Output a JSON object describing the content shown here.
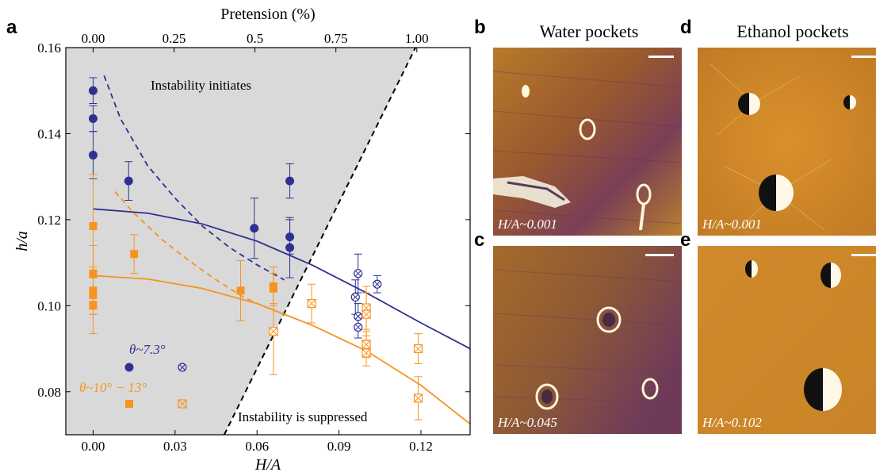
{
  "panels": {
    "a": "a",
    "b": "b",
    "c": "c",
    "d": "d",
    "e": "e"
  },
  "image_titles": {
    "water": "Water pockets",
    "ethanol": "Ethanol pockets"
  },
  "image_labels": {
    "b": "H/A~0.001",
    "c": "H/A~0.045",
    "d": "H/A~0.001",
    "e": "H/A~0.102"
  },
  "annotations": {
    "instability_initiates": "Instability initiates",
    "instability_suppressed": "Instability is suppressed",
    "legend_blue": "θ~7.3°",
    "legend_orange": "θ~10° − 13°"
  },
  "colors": {
    "blue": "#2e3192",
    "orange": "#f7931e",
    "shaded": "#d9d9d9"
  },
  "chart_data": {
    "type": "scatter",
    "xlabel": "H/A",
    "ylabel": "h/a",
    "top_xlabel": "Pretension (%)",
    "xlim": [
      -0.01,
      0.138
    ],
    "ylim": [
      0.07,
      0.16
    ],
    "x_ticks": [
      0.0,
      0.03,
      0.06,
      0.09,
      0.12
    ],
    "x_tick_labels": [
      "0.00",
      "0.03",
      "0.06",
      "0.09",
      "0.12"
    ],
    "y_ticks": [
      0.08,
      0.1,
      0.12,
      0.14,
      0.16
    ],
    "y_tick_labels": [
      "0.08",
      "0.10",
      "0.12",
      "0.14",
      "0.16"
    ],
    "top_ticks": [
      0.0,
      0.25,
      0.5,
      0.75,
      1.0
    ],
    "top_tick_labels": [
      "0.00",
      "0.25",
      "0.5",
      "0.75",
      "1.00"
    ],
    "boundary_line": {
      "x": [
        0.048,
        0.118
      ],
      "y": [
        0.07,
        0.16
      ]
    },
    "series": [
      {
        "name": "θ~7.3°",
        "color": "blue",
        "marker": "filled-circle",
        "points": [
          {
            "x": 0.0,
            "y": 0.15,
            "err": 0.003
          },
          {
            "x": 0.0,
            "y": 0.1435,
            "err": 0.003
          },
          {
            "x": 0.0,
            "y": 0.135,
            "err": 0.0055
          },
          {
            "x": 0.013,
            "y": 0.129,
            "err": 0.0045
          },
          {
            "x": 0.059,
            "y": 0.118,
            "err": 0.007
          },
          {
            "x": 0.072,
            "y": 0.129,
            "err": 0.004
          },
          {
            "x": 0.072,
            "y": 0.116,
            "err": 0.004
          },
          {
            "x": 0.072,
            "y": 0.1135,
            "err": 0.007
          }
        ]
      },
      {
        "name": "θ~7.3° (suppressed)",
        "color": "blue",
        "marker": "crossed-circle",
        "points": [
          {
            "x": 0.097,
            "y": 0.1075,
            "err": 0.0045
          },
          {
            "x": 0.096,
            "y": 0.102,
            "err": 0.004
          },
          {
            "x": 0.097,
            "y": 0.0975,
            "err": 0.003
          },
          {
            "x": 0.097,
            "y": 0.095,
            "err": 0.0025
          },
          {
            "x": 0.104,
            "y": 0.105,
            "err": 0.002
          }
        ]
      },
      {
        "name": "θ~10° − 13°",
        "color": "orange",
        "marker": "filled-square",
        "points": [
          {
            "x": 0.0,
            "y": 0.1185,
            "err": 0.012
          },
          {
            "x": 0.0,
            "y": 0.1075,
            "err": 0.0065
          },
          {
            "x": 0.0,
            "y": 0.1035,
            "err": 0.0055
          },
          {
            "x": 0.0,
            "y": 0.1025,
            "err": 0.0045
          },
          {
            "x": 0.0,
            "y": 0.1,
            "err": 0.0065
          },
          {
            "x": 0.015,
            "y": 0.112,
            "err": 0.0045
          },
          {
            "x": 0.054,
            "y": 0.1035,
            "err": 0.007
          },
          {
            "x": 0.066,
            "y": 0.1045,
            "err": 0.0045
          },
          {
            "x": 0.066,
            "y": 0.104,
            "err": 0.0035
          }
        ]
      },
      {
        "name": "θ~10° − 13° (suppressed)",
        "color": "orange",
        "marker": "crossed-square",
        "points": [
          {
            "x": 0.066,
            "y": 0.094,
            "err": 0.01
          },
          {
            "x": 0.08,
            "y": 0.1005,
            "err": 0.0045
          },
          {
            "x": 0.1,
            "y": 0.0995,
            "err": 0.005
          },
          {
            "x": 0.1,
            "y": 0.098,
            "err": 0.005
          },
          {
            "x": 0.1,
            "y": 0.091,
            "err": 0.003
          },
          {
            "x": 0.1,
            "y": 0.089,
            "err": 0.003
          },
          {
            "x": 0.119,
            "y": 0.09,
            "err": 0.0035
          },
          {
            "x": 0.119,
            "y": 0.0785,
            "err": 0.005
          }
        ]
      }
    ],
    "curves": [
      {
        "color": "blue",
        "style": "solid",
        "x": [
          0.0,
          0.02,
          0.04,
          0.06,
          0.08,
          0.1,
          0.12,
          0.138
        ],
        "y": [
          0.1225,
          0.1215,
          0.119,
          0.115,
          0.1095,
          0.103,
          0.096,
          0.09
        ]
      },
      {
        "color": "blue",
        "style": "dashed",
        "x": [
          0.004,
          0.01,
          0.02,
          0.03,
          0.04,
          0.05,
          0.06,
          0.07
        ],
        "y": [
          0.1535,
          0.1435,
          0.1325,
          0.125,
          0.1185,
          0.1135,
          0.1095,
          0.106
        ]
      },
      {
        "color": "orange",
        "style": "solid",
        "x": [
          0.0,
          0.02,
          0.04,
          0.06,
          0.08,
          0.1,
          0.12,
          0.138
        ],
        "y": [
          0.107,
          0.1062,
          0.104,
          0.1005,
          0.0955,
          0.0895,
          0.0815,
          0.0725
        ]
      },
      {
        "color": "orange",
        "style": "dashed",
        "x": [
          0.008,
          0.015,
          0.025,
          0.035,
          0.045,
          0.055,
          0.062
        ],
        "y": [
          0.1265,
          0.1215,
          0.1155,
          0.1105,
          0.106,
          0.102,
          0.1
        ]
      }
    ]
  }
}
